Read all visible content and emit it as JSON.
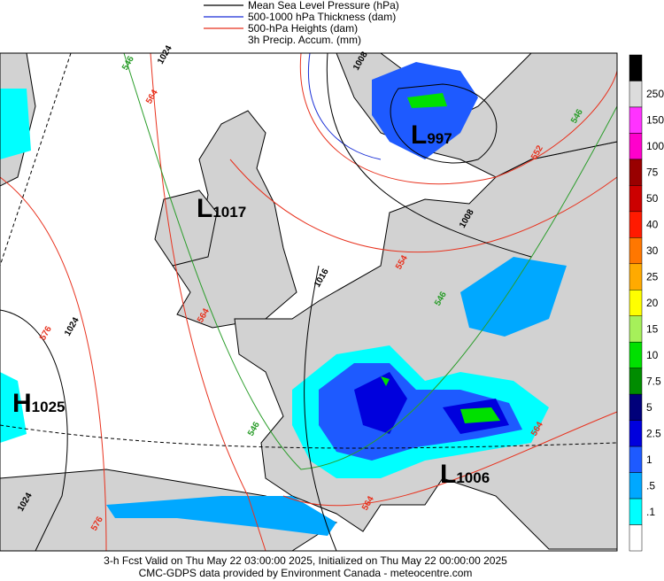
{
  "legend": [
    {
      "label": "Mean Sea Level Pressure (hPa)",
      "color": "#000000"
    },
    {
      "label": "500-1000 hPa Thickness (dam)",
      "color": "#1a2fd6"
    },
    {
      "label": "500-hPa Heights (dam)",
      "color": "#e8321e"
    },
    {
      "label": "3h Precip. Accum. (mm)",
      "color": null
    }
  ],
  "colorbar": {
    "labels": [
      "250",
      "150",
      "100",
      "75",
      "50",
      "40",
      "30",
      "25",
      "20",
      "15",
      "10",
      "7.5",
      "5",
      "2.5",
      "1",
      ".5",
      ".1"
    ],
    "colors": [
      "#000000",
      "#dcdcdc",
      "#ff33ff",
      "#ff00cc",
      "#990000",
      "#cc0000",
      "#ff1a00",
      "#ff7700",
      "#ffaa00",
      "#ffff00",
      "#a6f05a",
      "#00e000",
      "#008c00",
      "#00007a",
      "#0000dd",
      "#1e5aff",
      "#00a8ff",
      "#00ffff",
      "#ffffff"
    ]
  },
  "centers": [
    {
      "letter": "L",
      "value": "1017"
    },
    {
      "letter": "L",
      "value": "997"
    },
    {
      "letter": "L",
      "value": "1006"
    },
    {
      "letter": "H",
      "value": "1025"
    }
  ],
  "contour_labels": [
    {
      "text": "1024",
      "color": "#000000"
    },
    {
      "text": "546",
      "color": "#2a9d2a"
    },
    {
      "text": "564",
      "color": "#e8321e"
    },
    {
      "text": "1008",
      "color": "#000000"
    },
    {
      "text": "546",
      "color": "#2a9d2a"
    },
    {
      "text": "552",
      "color": "#e8321e"
    },
    {
      "text": "1008",
      "color": "#000000"
    },
    {
      "text": "554",
      "color": "#e8321e"
    },
    {
      "text": "546",
      "color": "#2a9d2a"
    },
    {
      "text": "1016",
      "color": "#000000"
    },
    {
      "text": "576",
      "color": "#e8321e"
    },
    {
      "text": "1024",
      "color": "#000000"
    },
    {
      "text": "564",
      "color": "#e8321e"
    },
    {
      "text": "546",
      "color": "#2a9d2a"
    },
    {
      "text": "1024",
      "color": "#000000"
    },
    {
      "text": "576",
      "color": "#e8321e"
    },
    {
      "text": "564",
      "color": "#e8321e"
    },
    {
      "text": "564",
      "color": "#e8321e"
    }
  ],
  "footer": [
    "3-h Fcst Valid on Thu May 22 03:00:00 2025, Initialized on Thu May 22 00:00:00 2025",
    "CMC-GDPS data provided by Environment Canada - meteocentre.com"
  ]
}
